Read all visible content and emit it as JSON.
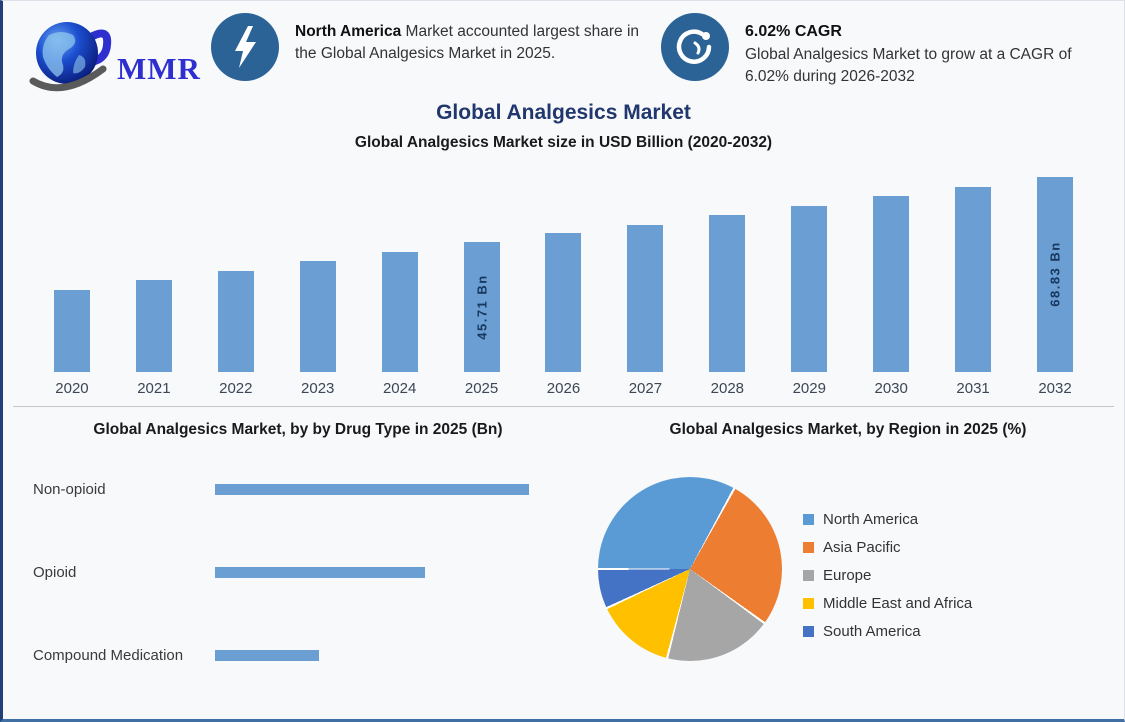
{
  "brand": {
    "name": "MMR"
  },
  "header": {
    "callout1": {
      "icon": "lightning-bolt-icon",
      "highlight": "North America",
      "text": " Market accounted largest share in the Global Analgesics Market in 2025."
    },
    "callout2": {
      "icon": "cagr-growth-icon",
      "title": "6.02% CAGR",
      "text": "Global Analgesics Market to grow at a CAGR of 6.02% during 2026-2032"
    }
  },
  "page_title": "Global Analgesics Market",
  "colors": {
    "bar_blue": "#6B9FD3",
    "title_navy": "#21376E",
    "icon_circle_blue": "#2B6397",
    "bottom_border_blue": "#3F6FA3"
  },
  "chart_data": [
    {
      "type": "bar",
      "title": "Global Analgesics Market size in USD Billion (2020-2032)",
      "categories": [
        "2020",
        "2021",
        "2022",
        "2023",
        "2024",
        "2025",
        "2026",
        "2027",
        "2028",
        "2029",
        "2030",
        "2031",
        "2032"
      ],
      "values": [
        29.1,
        32.6,
        35.8,
        39.3,
        42.5,
        45.71,
        49.0,
        51.9,
        55.5,
        58.6,
        62.0,
        65.3,
        68.83
      ],
      "data_labels": [
        "",
        "",
        "",
        "",
        "",
        "45.71 Bn",
        "",
        "",
        "",
        "",
        "",
        "",
        "68.83 Bn"
      ],
      "unit": "USD Billion",
      "bar_color": "#6B9FD3",
      "ylim": [
        0,
        70
      ],
      "grid": false,
      "legend_position": "none"
    },
    {
      "type": "bar",
      "orientation": "horizontal",
      "title": "Global Analgesics Market, by by Drug Type in 2025 (Bn)",
      "categories": [
        "Non-opioid",
        "Opioid",
        "Compound Medication"
      ],
      "values": [
        22.9,
        15.3,
        7.6
      ],
      "unit": "USD Billion",
      "bar_color": "#6B9FD3",
      "grid": false,
      "legend_position": "none"
    },
    {
      "type": "pie",
      "title": "Global Analgesics Market, by Region in 2025 (%)",
      "labels": [
        "North America",
        "Asia Pacific",
        "Europe",
        "Middle East and Africa",
        "South America"
      ],
      "values": [
        33,
        27,
        19,
        14,
        7
      ],
      "colors": [
        "#5B9BD5",
        "#ED7D31",
        "#A6A6A6",
        "#FFC000",
        "#4472C4"
      ],
      "unit": "%",
      "legend_position": "right"
    }
  ]
}
